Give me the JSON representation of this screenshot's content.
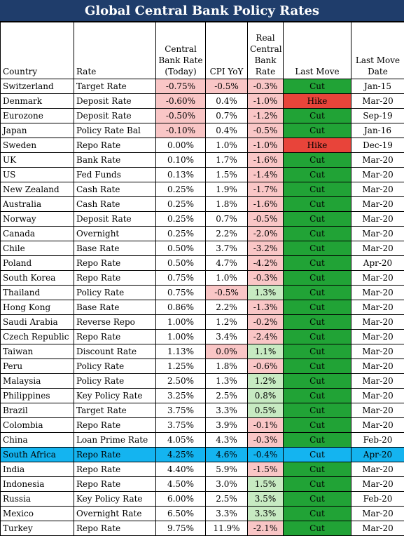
{
  "title": "Global Central Bank Policy Rates",
  "headers": {
    "country": "Country",
    "rate": "Rate",
    "cbr": "Central Bank Rate (Today)",
    "cpi": "CPI YoY",
    "real": "Real Central Bank Rate",
    "move": "Last Move",
    "date": "Last Move Date"
  },
  "colors": {
    "title_bg": "#1f3d6b",
    "negative": "#f9c6c6",
    "positive": "#c7eac2",
    "cut": "#21a336",
    "hike": "#e8443a",
    "highlight": "#14b4f0"
  },
  "rows": [
    {
      "country": "Switzerland",
      "rate": "Target Rate",
      "cbr": "-0.75%",
      "cpi": "-0.5%",
      "real": "-0.3%",
      "move": "Cut",
      "date": "Jan-15"
    },
    {
      "country": "Denmark",
      "rate": "Deposit Rate",
      "cbr": "-0.60%",
      "cpi": "0.4%",
      "real": "-1.0%",
      "move": "Hike",
      "date": "Mar-20"
    },
    {
      "country": "Eurozone",
      "rate": "Deposit Rate",
      "cbr": "-0.50%",
      "cpi": "0.7%",
      "real": "-1.2%",
      "move": "Cut",
      "date": "Sep-19"
    },
    {
      "country": "Japan",
      "rate": "Policy Rate Bal",
      "cbr": "-0.10%",
      "cpi": "0.4%",
      "real": "-0.5%",
      "move": "Cut",
      "date": "Jan-16"
    },
    {
      "country": "Sweden",
      "rate": "Repo Rate",
      "cbr": "0.00%",
      "cpi": "1.0%",
      "real": "-1.0%",
      "move": "Hike",
      "date": "Dec-19"
    },
    {
      "country": "UK",
      "rate": "Bank Rate",
      "cbr": "0.10%",
      "cpi": "1.7%",
      "real": "-1.6%",
      "move": "Cut",
      "date": "Mar-20"
    },
    {
      "country": "US",
      "rate": "Fed Funds",
      "cbr": "0.13%",
      "cpi": "1.5%",
      "real": "-1.4%",
      "move": "Cut",
      "date": "Mar-20"
    },
    {
      "country": "New Zealand",
      "rate": "Cash Rate",
      "cbr": "0.25%",
      "cpi": "1.9%",
      "real": "-1.7%",
      "move": "Cut",
      "date": "Mar-20"
    },
    {
      "country": "Australia",
      "rate": "Cash Rate",
      "cbr": "0.25%",
      "cpi": "1.8%",
      "real": "-1.6%",
      "move": "Cut",
      "date": "Mar-20"
    },
    {
      "country": "Norway",
      "rate": "Deposit Rate",
      "cbr": "0.25%",
      "cpi": "0.7%",
      "real": "-0.5%",
      "move": "Cut",
      "date": "Mar-20"
    },
    {
      "country": "Canada",
      "rate": "Overnight",
      "cbr": "0.25%",
      "cpi": "2.2%",
      "real": "-2.0%",
      "move": "Cut",
      "date": "Mar-20"
    },
    {
      "country": "Chile",
      "rate": "Base Rate",
      "cbr": "0.50%",
      "cpi": "3.7%",
      "real": "-3.2%",
      "move": "Cut",
      "date": "Mar-20"
    },
    {
      "country": "Poland",
      "rate": "Repo Rate",
      "cbr": "0.50%",
      "cpi": "4.7%",
      "real": "-4.2%",
      "move": "Cut",
      "date": "Apr-20"
    },
    {
      "country": "South Korea",
      "rate": "Repo Rate",
      "cbr": "0.75%",
      "cpi": "1.0%",
      "real": "-0.3%",
      "move": "Cut",
      "date": "Mar-20"
    },
    {
      "country": "Thailand",
      "rate": "Policy Rate",
      "cbr": "0.75%",
      "cpi": "-0.5%",
      "real": "1.3%",
      "move": "Cut",
      "date": "Mar-20"
    },
    {
      "country": "Hong Kong",
      "rate": "Base Rate",
      "cbr": "0.86%",
      "cpi": "2.2%",
      "real": "-1.3%",
      "move": "Cut",
      "date": "Mar-20"
    },
    {
      "country": "Saudi Arabia",
      "rate": "Reverse Repo",
      "cbr": "1.00%",
      "cpi": "1.2%",
      "real": "-0.2%",
      "move": "Cut",
      "date": "Mar-20"
    },
    {
      "country": "Czech Republic",
      "rate": "Repo Rate",
      "cbr": "1.00%",
      "cpi": "3.4%",
      "real": "-2.4%",
      "move": "Cut",
      "date": "Mar-20"
    },
    {
      "country": "Taiwan",
      "rate": "Discount Rate",
      "cbr": "1.13%",
      "cpi": "0.0%",
      "real": "1.1%",
      "move": "Cut",
      "date": "Mar-20"
    },
    {
      "country": "Peru",
      "rate": "Policy Rate",
      "cbr": "1.25%",
      "cpi": "1.8%",
      "real": "-0.6%",
      "move": "Cut",
      "date": "Mar-20"
    },
    {
      "country": "Malaysia",
      "rate": "Policy Rate",
      "cbr": "2.50%",
      "cpi": "1.3%",
      "real": "1.2%",
      "move": "Cut",
      "date": "Mar-20"
    },
    {
      "country": "Philippines",
      "rate": "Key Policy Rate",
      "cbr": "3.25%",
      "cpi": "2.5%",
      "real": "0.8%",
      "move": "Cut",
      "date": "Mar-20"
    },
    {
      "country": "Brazil",
      "rate": "Target Rate",
      "cbr": "3.75%",
      "cpi": "3.3%",
      "real": "0.5%",
      "move": "Cut",
      "date": "Mar-20"
    },
    {
      "country": "Colombia",
      "rate": "Repo Rate",
      "cbr": "3.75%",
      "cpi": "3.9%",
      "real": "-0.1%",
      "move": "Cut",
      "date": "Mar-20"
    },
    {
      "country": "China",
      "rate": "Loan Prime Rate",
      "cbr": "4.05%",
      "cpi": "4.3%",
      "real": "-0.3%",
      "move": "Cut",
      "date": "Feb-20"
    },
    {
      "country": "South Africa",
      "rate": "Repo Rate",
      "cbr": "4.25%",
      "cpi": "4.6%",
      "real": "-0.4%",
      "move": "Cut",
      "date": "Apr-20",
      "highlight": true
    },
    {
      "country": "India",
      "rate": "Repo Rate",
      "cbr": "4.40%",
      "cpi": "5.9%",
      "real": "-1.5%",
      "move": "Cut",
      "date": "Mar-20"
    },
    {
      "country": "Indonesia",
      "rate": "Repo Rate",
      "cbr": "4.50%",
      "cpi": "3.0%",
      "real": "1.5%",
      "move": "Cut",
      "date": "Mar-20"
    },
    {
      "country": "Russia",
      "rate": "Key Policy Rate",
      "cbr": "6.00%",
      "cpi": "2.5%",
      "real": "3.5%",
      "move": "Cut",
      "date": "Feb-20"
    },
    {
      "country": "Mexico",
      "rate": "Overnight Rate",
      "cbr": "6.50%",
      "cpi": "3.3%",
      "real": "3.3%",
      "move": "Cut",
      "date": "Mar-20"
    },
    {
      "country": "Turkey",
      "rate": "Repo Rate",
      "cbr": "9.75%",
      "cpi": "11.9%",
      "real": "-2.1%",
      "move": "Cut",
      "date": "Mar-20"
    }
  ]
}
